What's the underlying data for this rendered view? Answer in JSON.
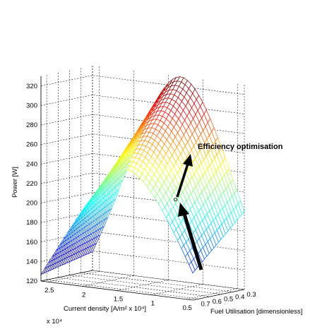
{
  "chart_data": {
    "type": "surface",
    "zlabel": "Power [W]",
    "xlabel": "Current density [A/m² x 10⁴]",
    "x_exponent": "x 10⁴",
    "ylabel": "Fuel Utilisation [dimensionless]",
    "x_ticks": [
      "2.5",
      "2",
      "1.5",
      "1",
      "0.5"
    ],
    "x_tick_values": [
      2.5,
      2,
      1.5,
      1,
      0.5
    ],
    "y_ticks": [
      "0.7",
      "0.6",
      "0.5",
      "0.4",
      "0.3"
    ],
    "y_tick_values": [
      0.7,
      0.6,
      0.5,
      0.4,
      0.3
    ],
    "z_ticks": [
      "120",
      "140",
      "160",
      "180",
      "200",
      "220",
      "240",
      "260",
      "280",
      "300",
      "320"
    ],
    "z_tick_values": [
      120,
      140,
      160,
      180,
      200,
      220,
      240,
      260,
      280,
      300,
      320
    ],
    "zlim": [
      120,
      330
    ],
    "peak_power": 330,
    "marker_label": "o",
    "annotation": "Efficiency optimisation",
    "grid": true,
    "colormap": "jet"
  },
  "colors": {
    "arrow": "#000000",
    "surface_low": "#00008b",
    "surface_high": "#d01010"
  }
}
